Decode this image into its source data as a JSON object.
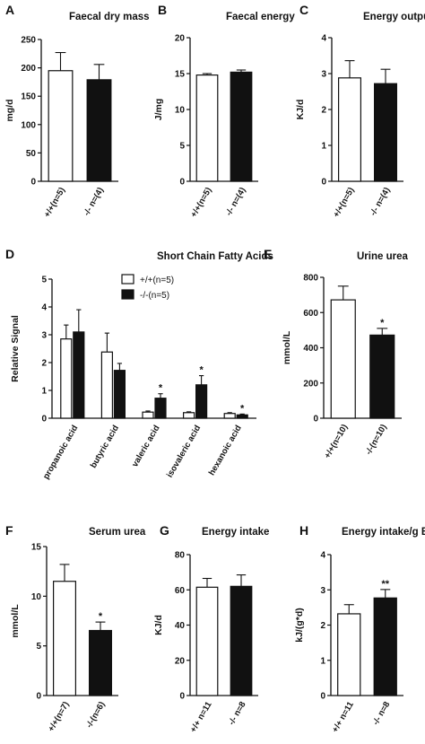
{
  "chart_data": [
    {
      "letter": "A",
      "type": "bar",
      "title": "Faecal dry mass",
      "ylabel": "mg/d",
      "ylim": [
        0,
        250
      ],
      "yticks": [
        0,
        50,
        100,
        150,
        200,
        250
      ],
      "categories": [
        "+/+(n=5)",
        "-/- n=(4)"
      ],
      "values": [
        195,
        179
      ],
      "errors": [
        32,
        27
      ],
      "fills": [
        "#ffffff",
        "#111111"
      ],
      "annotations": [
        "",
        ""
      ]
    },
    {
      "letter": "B",
      "type": "bar",
      "title": "Faecal energy",
      "ylabel": "J/mg",
      "ylim": [
        0,
        20
      ],
      "yticks": [
        0,
        5,
        10,
        15,
        20
      ],
      "categories": [
        "+/+(n=5)",
        "-/- n=(4)"
      ],
      "values": [
        14.8,
        15.2
      ],
      "errors": [
        0.2,
        0.3
      ],
      "fills": [
        "#ffffff",
        "#111111"
      ],
      "annotations": [
        "",
        ""
      ]
    },
    {
      "letter": "C",
      "type": "bar",
      "title": "Energy output",
      "ylabel": "KJ/d",
      "ylim": [
        0,
        4
      ],
      "yticks": [
        0,
        1,
        2,
        3,
        4
      ],
      "categories": [
        "+/+(n=5)",
        "-/- n=(4)"
      ],
      "values": [
        2.88,
        2.72
      ],
      "errors": [
        0.48,
        0.4
      ],
      "fills": [
        "#ffffff",
        "#111111"
      ],
      "annotations": [
        "",
        ""
      ]
    },
    {
      "letter": "D",
      "type": "bar",
      "title": "Short Chain Fatty Acids",
      "ylabel": "Relative Signal",
      "ylim": [
        0,
        5
      ],
      "yticks": [
        0,
        1,
        2,
        3,
        4,
        5
      ],
      "categories": [
        "propanoic acid",
        "butyric acid",
        "valeric acid",
        "isovaleric acid",
        "hexanoic acid"
      ],
      "series": [
        {
          "name": "+/+(n=5)",
          "fill": "#ffffff",
          "values": [
            2.85,
            2.38,
            0.22,
            0.2,
            0.17
          ],
          "errors": [
            0.5,
            0.68,
            0.04,
            0.03,
            0.03
          ]
        },
        {
          "name": "-/-(n=5)",
          "fill": "#111111",
          "values": [
            3.1,
            1.72,
            0.72,
            1.2,
            0.12
          ],
          "errors": [
            0.8,
            0.25,
            0.16,
            0.33,
            0.03
          ]
        }
      ],
      "annotations": [
        "",
        "",
        "*",
        "*",
        "*"
      ]
    },
    {
      "letter": "E",
      "type": "bar",
      "title": "Urine urea",
      "ylabel": "mmol/L",
      "ylim": [
        0,
        800
      ],
      "yticks": [
        0,
        200,
        400,
        600,
        800
      ],
      "categories": [
        "+/+(n=10)",
        "-/-(n=10)"
      ],
      "values": [
        672,
        472
      ],
      "errors": [
        78,
        38
      ],
      "fills": [
        "#ffffff",
        "#111111"
      ],
      "annotations": [
        "",
        "*"
      ]
    },
    {
      "letter": "F",
      "type": "bar",
      "title": "Serum urea",
      "ylabel": "mmol/L",
      "ylim": [
        0,
        15
      ],
      "yticks": [
        0,
        5,
        10,
        15
      ],
      "categories": [
        "+/+(n=7)",
        "-/-(n=6)"
      ],
      "values": [
        11.5,
        6.55
      ],
      "errors": [
        1.7,
        0.85
      ],
      "fills": [
        "#ffffff",
        "#111111"
      ],
      "annotations": [
        "",
        "*"
      ]
    },
    {
      "letter": "G",
      "type": "bar",
      "title": "Energy intake",
      "ylabel": "KJ/d",
      "ylim": [
        0,
        80
      ],
      "yticks": [
        0,
        20,
        40,
        60,
        80
      ],
      "categories": [
        "+/+ n=11",
        "-/- n=8"
      ],
      "values": [
        61.5,
        62
      ],
      "errors": [
        5,
        6.5
      ],
      "fills": [
        "#ffffff",
        "#111111"
      ],
      "annotations": [
        "",
        ""
      ]
    },
    {
      "letter": "H",
      "type": "bar",
      "title": "Energy intake/g BM",
      "ylabel": "kJ/(g*d)",
      "ylim": [
        0,
        4
      ],
      "yticks": [
        0,
        1,
        2,
        3,
        4
      ],
      "categories": [
        "+/+ n=11",
        "-/- n=8"
      ],
      "values": [
        2.32,
        2.77
      ],
      "errors": [
        0.26,
        0.24
      ],
      "fills": [
        "#ffffff",
        "#111111"
      ],
      "annotations": [
        "",
        "**"
      ]
    }
  ]
}
